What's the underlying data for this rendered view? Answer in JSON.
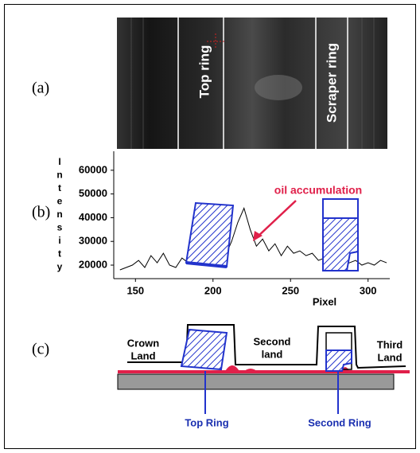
{
  "image_panel": {
    "label": "(a)",
    "ring_labels": [
      "Top ring",
      "Scraper ring"
    ]
  },
  "chart_data": {
    "type": "line",
    "panel_label": "(b)",
    "x_label": "Pixel",
    "y_label": "Intensity",
    "annotation": "oil accumulation",
    "x": [
      140,
      144,
      148,
      152,
      156,
      160,
      164,
      168,
      172,
      176,
      180,
      184,
      188,
      192,
      196,
      200,
      204,
      208,
      212,
      216,
      220,
      224,
      228,
      232,
      236,
      240,
      244,
      248,
      252,
      256,
      260,
      264,
      268,
      272,
      276,
      280,
      284,
      288,
      292,
      296,
      300,
      304,
      308,
      312
    ],
    "series": [
      {
        "color": "#000000",
        "values": [
          18000,
          19000,
          20000,
          22000,
          19000,
          24000,
          21000,
          25000,
          20000,
          19000,
          23000,
          21000,
          25000,
          24000,
          20000,
          26000,
          22000,
          24000,
          30000,
          38000,
          44000,
          35000,
          28000,
          31000,
          26000,
          29000,
          24000,
          28000,
          25000,
          26000,
          24000,
          25000,
          22000,
          23000,
          21000,
          22000,
          20000,
          21000,
          22000,
          20000,
          21000,
          20000,
          22000,
          21000
        ]
      }
    ],
    "xlim": [
      136,
      314
    ],
    "ylim": [
      14300,
      68000
    ],
    "xticks": [
      150,
      200,
      250,
      300
    ],
    "yticks": [
      20000,
      30000,
      40000,
      50000,
      60000
    ]
  },
  "diagram": {
    "label": "(c)",
    "land_labels": [
      [
        "Crown",
        "Land"
      ],
      [
        "Second",
        "land"
      ],
      [
        "Third",
        "Land"
      ]
    ],
    "ring_labels": [
      "Top Ring",
      "Second Ring"
    ]
  }
}
